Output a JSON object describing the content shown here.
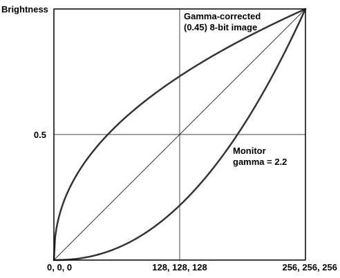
{
  "chart_data": {
    "type": "line",
    "ylabel": "Brightness",
    "xlim": [
      0,
      256
    ],
    "ylim": [
      0,
      1
    ],
    "x_ticks": [
      {
        "value": 0,
        "label": "0, 0, 0"
      },
      {
        "value": 128,
        "label": "128, 128, 128"
      },
      {
        "value": 256,
        "label": "256, 256, 256"
      }
    ],
    "y_ticks": [
      {
        "value": 0.5,
        "label": "0.5"
      }
    ],
    "grid": {
      "x": [
        128
      ],
      "y": [
        0.5
      ]
    },
    "series": [
      {
        "kind": "power",
        "gamma": 0.45,
        "stroke_width": 2.5
      },
      {
        "kind": "power",
        "gamma": 1.0,
        "stroke_width": 1
      },
      {
        "kind": "power",
        "gamma": 2.2,
        "stroke_width": 2.5
      }
    ],
    "annotations": [
      {
        "lines": [
          "Gamma-corrected",
          "(0.45) 8-bit image"
        ]
      },
      {
        "lines": [
          "Monitor",
          "gamma = 2.2"
        ]
      }
    ],
    "colors": {
      "line": "#333333",
      "frame": "#000000",
      "grid": "#444444"
    }
  }
}
